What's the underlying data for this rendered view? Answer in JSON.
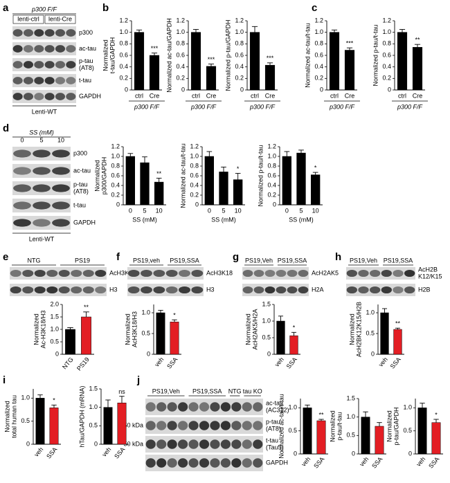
{
  "panel_letters": [
    "a",
    "b",
    "c",
    "d",
    "e",
    "f",
    "g",
    "h",
    "i",
    "j"
  ],
  "blots": {
    "a": {
      "header": "p300 F/F",
      "lanes": [
        "lenti-ctrl",
        "lenti-Cre"
      ],
      "rows": [
        [
          "p300"
        ],
        [
          "ac-tau"
        ],
        [
          "p-tau",
          "(AT8)"
        ],
        [
          "t-tau"
        ],
        [
          "GAPDH"
        ]
      ],
      "footer": "Lenti-WT"
    },
    "d": {
      "header": "SS (mM)",
      "lanes": [
        "0",
        "5",
        "10"
      ],
      "rows": [
        [
          "p300"
        ],
        [
          "ac-tau"
        ],
        [
          "p-tau",
          "(AT8)"
        ],
        [
          "t-tau"
        ],
        [
          "GAPDH"
        ]
      ],
      "footer": "Lenti-WT"
    },
    "e": {
      "groups": [
        "NTG",
        "PS19"
      ],
      "rows": [
        [
          "AcH3K18"
        ],
        [
          "H3"
        ]
      ]
    },
    "f": {
      "groups": [
        "PS19,veh",
        "PS19,SSA"
      ],
      "rows": [
        [
          "AcH3K18"
        ],
        [
          "H3"
        ]
      ]
    },
    "g": {
      "groups": [
        "PS19,Veh",
        "PS19,SSA"
      ],
      "rows": [
        [
          "AcH2AK5"
        ],
        [
          "H2A"
        ]
      ]
    },
    "h": {
      "groups": [
        "PS19,Veh",
        "PS19,SSA"
      ],
      "rows": [
        [
          "AcH2B",
          "K12/K15"
        ],
        [
          "H2B"
        ]
      ]
    },
    "j": {
      "groups": [
        "PS19,Veh",
        "PS19,SSA",
        "NTG",
        "tau KO"
      ],
      "rows": [
        [
          "ac-tau",
          "(AC312)"
        ],
        [
          "p-tau",
          "(AT8)"
        ],
        [
          "t-tau",
          "(Tau5)"
        ],
        [
          "GAPDH"
        ]
      ],
      "markers": [
        null,
        "50 kDa",
        "50 kDa",
        null
      ]
    }
  },
  "chart_data": [
    {
      "type": "bar",
      "ylabel": [
        "Normalized",
        "t-tau/GAPDH"
      ],
      "categories": [
        "ctrl",
        "Cre"
      ],
      "values": [
        1.0,
        0.6
      ],
      "errors": [
        0.04,
        0.04
      ],
      "colors": [
        "#000000",
        "#000000"
      ],
      "value_annotations": [
        null,
        "***"
      ],
      "group_label": "p300 F/F",
      "ylim": [
        0,
        1.2
      ],
      "yticks": [
        0,
        0.2,
        0.4,
        0.6,
        0.8,
        {
          "value": 1,
          "label": "1.0"
        },
        1.2
      ]
    },
    {
      "type": "bar",
      "ylabel": [
        "Normalized ac-tau/GAPDH"
      ],
      "categories": [
        "ctrl",
        "Cre"
      ],
      "values": [
        1.0,
        0.41
      ],
      "errors": [
        0.05,
        0.04
      ],
      "colors": [
        "#000000",
        "#000000"
      ],
      "value_annotations": [
        null,
        "***"
      ],
      "group_label": "p300 F/F",
      "ylim": [
        0,
        1.2
      ],
      "yticks": [
        0,
        0.2,
        0.4,
        0.6,
        0.8,
        {
          "value": 1,
          "label": "1.0"
        },
        1.2
      ]
    },
    {
      "type": "bar",
      "ylabel": [
        "Normalized p-tau/GAPDH"
      ],
      "categories": [
        "ctrl",
        "Cre"
      ],
      "values": [
        1.0,
        0.43
      ],
      "errors": [
        0.1,
        0.04
      ],
      "colors": [
        "#000000",
        "#000000"
      ],
      "value_annotations": [
        null,
        "***"
      ],
      "group_label": "p300 F/F",
      "ylim": [
        0,
        1.2
      ],
      "yticks": [
        0,
        0.2,
        0.4,
        0.6,
        0.8,
        {
          "value": 1,
          "label": "1.0"
        },
        1.2
      ]
    },
    {
      "type": "bar",
      "ylabel": [
        "Normalized ac-tau/t-tau"
      ],
      "categories": [
        "ctrl",
        "Cre"
      ],
      "values": [
        1.0,
        0.69
      ],
      "errors": [
        0.04,
        0.04
      ],
      "colors": [
        "#000000",
        "#000000"
      ],
      "value_annotations": [
        null,
        "***"
      ],
      "group_label": "p300 F/F",
      "ylim": [
        0,
        1.2
      ],
      "yticks": [
        0,
        0.2,
        0.4,
        0.6,
        0.8,
        {
          "value": 1,
          "label": "1.0"
        },
        1.2
      ]
    },
    {
      "type": "bar",
      "ylabel": [
        "Normalized p-tau/t-tau"
      ],
      "categories": [
        "ctrl",
        "Cre"
      ],
      "values": [
        1.0,
        0.74
      ],
      "errors": [
        0.05,
        0.05
      ],
      "colors": [
        "#000000",
        "#000000"
      ],
      "value_annotations": [
        null,
        "**"
      ],
      "group_label": "p300 F/F",
      "ylim": [
        0,
        1.2
      ],
      "yticks": [
        0,
        0.2,
        0.4,
        0.6,
        0.8,
        {
          "value": 1,
          "label": "1.0"
        },
        1.2
      ]
    },
    {
      "type": "bar",
      "ylabel": [
        "Normalized",
        "p300/GAPDH"
      ],
      "categories": [
        "0",
        "5",
        "10"
      ],
      "values": [
        1.0,
        0.87,
        0.47
      ],
      "errors": [
        0.06,
        0.12,
        0.08
      ],
      "colors": [
        "#000000",
        "#000000",
        "#000000"
      ],
      "value_annotations": [
        null,
        null,
        "**"
      ],
      "xlabel": "SS (mM)",
      "ylim": [
        0,
        1.2
      ],
      "yticks": [
        0,
        0.2,
        0.4,
        0.6,
        0.8,
        {
          "value": 1,
          "label": "1.0"
        },
        1.2
      ]
    },
    {
      "type": "bar",
      "ylabel": [
        "Normalized ac-tau/t-tau"
      ],
      "categories": [
        "0",
        "5",
        "10"
      ],
      "values": [
        1.0,
        0.68,
        0.52
      ],
      "errors": [
        0.1,
        0.1,
        0.13
      ],
      "colors": [
        "#000000",
        "#000000",
        "#000000"
      ],
      "value_annotations": [
        null,
        null,
        "*"
      ],
      "xlabel": "SS (mM)",
      "ylim": [
        0,
        1.2
      ],
      "yticks": [
        0,
        0.2,
        0.4,
        0.6,
        0.8,
        {
          "value": 1,
          "label": "1.0"
        },
        1.2
      ]
    },
    {
      "type": "bar",
      "ylabel": [
        "Normalized p-tau/t-tau"
      ],
      "categories": [
        "0",
        "5",
        "10"
      ],
      "values": [
        1.0,
        1.07,
        0.62
      ],
      "errors": [
        0.1,
        0.06,
        0.05
      ],
      "colors": [
        "#000000",
        "#000000",
        "#000000"
      ],
      "value_annotations": [
        null,
        null,
        "*"
      ],
      "xlabel": "SS (mM)",
      "ylim": [
        0,
        1.2
      ],
      "yticks": [
        0,
        0.2,
        0.4,
        0.6,
        0.8,
        {
          "value": 1,
          "label": "1.0"
        },
        1.2
      ]
    },
    {
      "type": "bar",
      "ylabel": [
        "Normalized",
        "Ac-H3K18/H3"
      ],
      "categories": [
        "NTG",
        "PS19"
      ],
      "values": [
        1.0,
        1.5
      ],
      "errors": [
        0.07,
        0.2
      ],
      "colors": [
        "#000000",
        "#e31e24"
      ],
      "value_annotations": [
        null,
        "**"
      ],
      "ylim": [
        0,
        2
      ],
      "yticks": [
        0,
        0.5,
        {
          "value": 1,
          "label": "1.0"
        },
        1.5,
        {
          "value": 2,
          "label": "2.0"
        }
      ]
    },
    {
      "type": "bar",
      "ylabel": [
        "Normalized",
        "AcH3K18/H3"
      ],
      "categories": [
        "veh",
        "SSA"
      ],
      "values": [
        1.0,
        0.78
      ],
      "errors": [
        0.06,
        0.05
      ],
      "colors": [
        "#000000",
        "#e31e24"
      ],
      "value_annotations": [
        null,
        "*"
      ],
      "ylim": [
        0,
        1.2
      ],
      "yticks": [
        0,
        0.5,
        {
          "value": 1,
          "label": "1.0"
        }
      ]
    },
    {
      "type": "bar",
      "ylabel": [
        "Normalized",
        "AcH2AK5/H2A"
      ],
      "categories": [
        "veh",
        "SSA"
      ],
      "values": [
        1.0,
        0.56
      ],
      "errors": [
        0.15,
        0.1
      ],
      "colors": [
        "#000000",
        "#e31e24"
      ],
      "value_annotations": [
        null,
        "*"
      ],
      "ylim": [
        0,
        1.5
      ],
      "yticks": [
        0,
        0.5,
        {
          "value": 1,
          "label": "1.0"
        },
        1.5
      ]
    },
    {
      "type": "bar",
      "ylabel": [
        "Normalized",
        "AcH2BK12K15/H2B"
      ],
      "categories": [
        "veh",
        "SSA"
      ],
      "values": [
        1.0,
        0.6
      ],
      "errors": [
        0.1,
        0.03
      ],
      "colors": [
        "#000000",
        "#e31e24"
      ],
      "value_annotations": [
        null,
        "**"
      ],
      "ylim": [
        0,
        1.2
      ],
      "yticks": [
        0,
        0.5,
        {
          "value": 1,
          "label": "1.0"
        }
      ]
    },
    {
      "type": "bar",
      "ylabel": [
        "Normalized",
        "total human tau"
      ],
      "categories": [
        "veh",
        "SSA"
      ],
      "values": [
        1.0,
        0.79
      ],
      "errors": [
        0.07,
        0.06
      ],
      "colors": [
        "#000000",
        "#e31e24"
      ],
      "value_annotations": [
        null,
        "*"
      ],
      "ylim": [
        0,
        1.2
      ],
      "yticks": [
        0,
        0.5,
        {
          "value": 1,
          "label": "1.0"
        }
      ]
    },
    {
      "type": "bar",
      "ylabel": [
        "hTau/GAPDH (mRNA)"
      ],
      "categories": [
        "veh",
        "SSA"
      ],
      "values": [
        1.0,
        1.12
      ],
      "errors": [
        0.2,
        0.18
      ],
      "colors": [
        "#000000",
        "#e31e24"
      ],
      "value_annotations": [
        null,
        "ns"
      ],
      "ylim": [
        0,
        1.5
      ],
      "yticks": [
        0,
        0.5,
        {
          "value": 1,
          "label": "1.0"
        },
        1.5
      ]
    },
    {
      "type": "bar",
      "ylabel": [
        "Normalized ac-tau/t-tau"
      ],
      "categories": [
        "veh",
        "SSA"
      ],
      "values": [
        1.0,
        0.72
      ],
      "errors": [
        0.06,
        0.03
      ],
      "colors": [
        "#000000",
        "#e31e24"
      ],
      "value_annotations": [
        null,
        "**"
      ],
      "ylim": [
        0,
        1.2
      ],
      "yticks": [
        0,
        0.5,
        {
          "value": 1,
          "label": "1.0"
        }
      ]
    },
    {
      "type": "bar",
      "ylabel": [
        "Normalized",
        "p-tau/t-tau"
      ],
      "categories": [
        "veh",
        "SSA"
      ],
      "values": [
        1.0,
        0.75
      ],
      "errors": [
        0.14,
        0.1
      ],
      "colors": [
        "#000000",
        "#e31e24"
      ],
      "value_annotations": [
        null,
        null
      ],
      "ylim": [
        0,
        1.5
      ],
      "yticks": [
        0,
        0.5,
        {
          "value": 1,
          "label": "1.0"
        },
        1.5
      ]
    },
    {
      "type": "bar",
      "ylabel": [
        "Normalized",
        "p-tau/GAPDH"
      ],
      "categories": [
        "veh",
        "SSA"
      ],
      "values": [
        1.0,
        0.68
      ],
      "errors": [
        0.1,
        0.07
      ],
      "colors": [
        "#000000",
        "#e31e24"
      ],
      "value_annotations": [
        null,
        "*"
      ],
      "ylim": [
        0,
        1.2
      ],
      "yticks": [
        0,
        0.5,
        {
          "value": 1,
          "label": "1.0"
        }
      ]
    }
  ]
}
